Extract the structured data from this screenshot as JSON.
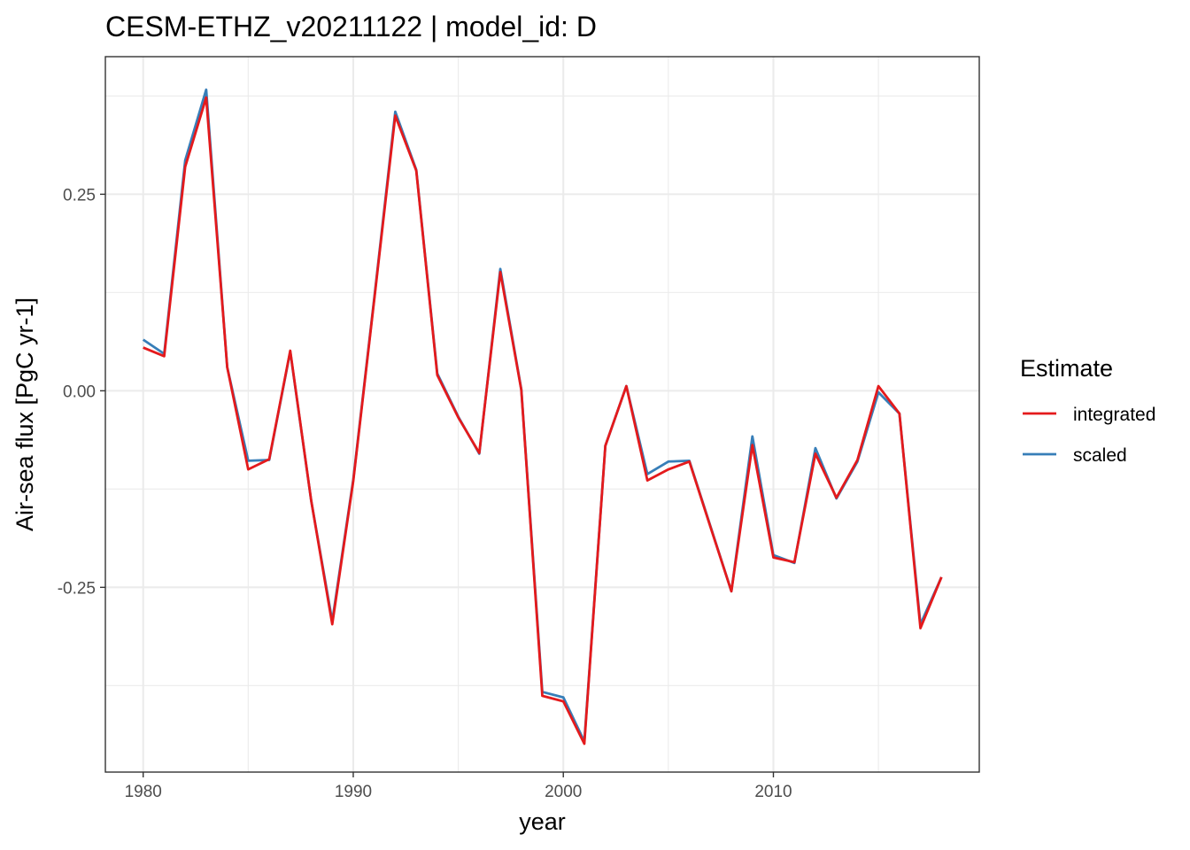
{
  "chart_data": {
    "type": "line",
    "title": "CESM-ETHZ_v20211122 | model_id: D",
    "xlabel": "year",
    "ylabel": "Air-sea flux [PgC yr-1]",
    "xlim": [
      1978.2,
      2019.8
    ],
    "ylim": [
      -0.485,
      0.425
    ],
    "x_ticks": [
      1980,
      1990,
      2000,
      2010
    ],
    "x_tick_labels": [
      "1980",
      "1990",
      "2000",
      "2010"
    ],
    "x_minor_ticks": [
      1985,
      1995,
      2005,
      2015
    ],
    "y_ticks": [
      -0.25,
      0,
      0.25
    ],
    "y_tick_labels": [
      "-0.25",
      "0.00",
      "0.25"
    ],
    "y_minor_ticks": [
      -0.375,
      -0.125,
      0.125,
      0.375
    ],
    "grid": true,
    "legend": {
      "title": "Estimate",
      "position": "right"
    },
    "x": [
      1980,
      1981,
      1982,
      1983,
      1984,
      1985,
      1986,
      1987,
      1988,
      1989,
      1990,
      1991,
      1992,
      1993,
      1994,
      1995,
      1996,
      1997,
      1998,
      1999,
      2000,
      2001,
      2002,
      2003,
      2004,
      2005,
      2006,
      2007,
      2008,
      2009,
      2010,
      2011,
      2012,
      2013,
      2014,
      2015,
      2016,
      2017,
      2018
    ],
    "series": [
      {
        "name": "scaled",
        "color": "#377eb8",
        "values": [
          0.065,
          0.047,
          0.293,
          0.383,
          0.03,
          -0.089,
          -0.088,
          0.05,
          -0.14,
          -0.293,
          -0.113,
          0.118,
          0.355,
          0.281,
          0.022,
          -0.033,
          -0.08,
          0.155,
          0.002,
          -0.383,
          -0.39,
          -0.446,
          -0.07,
          0.006,
          -0.106,
          -0.09,
          -0.089,
          -0.172,
          -0.255,
          -0.058,
          -0.209,
          -0.219,
          -0.073,
          -0.137,
          -0.09,
          -0.002,
          -0.029,
          -0.297,
          -0.237
        ]
      },
      {
        "name": "integrated",
        "color": "#e41a1c",
        "values": [
          0.055,
          0.044,
          0.285,
          0.373,
          0.03,
          -0.1,
          -0.087,
          0.051,
          -0.14,
          -0.297,
          -0.115,
          0.116,
          0.35,
          0.28,
          0.02,
          -0.034,
          -0.079,
          0.151,
          0.001,
          -0.388,
          -0.395,
          -0.449,
          -0.07,
          0.006,
          -0.114,
          -0.1,
          -0.09,
          -0.173,
          -0.255,
          -0.069,
          -0.212,
          -0.218,
          -0.08,
          -0.136,
          -0.088,
          0.006,
          -0.029,
          -0.302,
          -0.237
        ]
      }
    ],
    "legend_items": [
      {
        "name": "integrated",
        "color": "#e41a1c"
      },
      {
        "name": "scaled",
        "color": "#377eb8"
      }
    ]
  }
}
